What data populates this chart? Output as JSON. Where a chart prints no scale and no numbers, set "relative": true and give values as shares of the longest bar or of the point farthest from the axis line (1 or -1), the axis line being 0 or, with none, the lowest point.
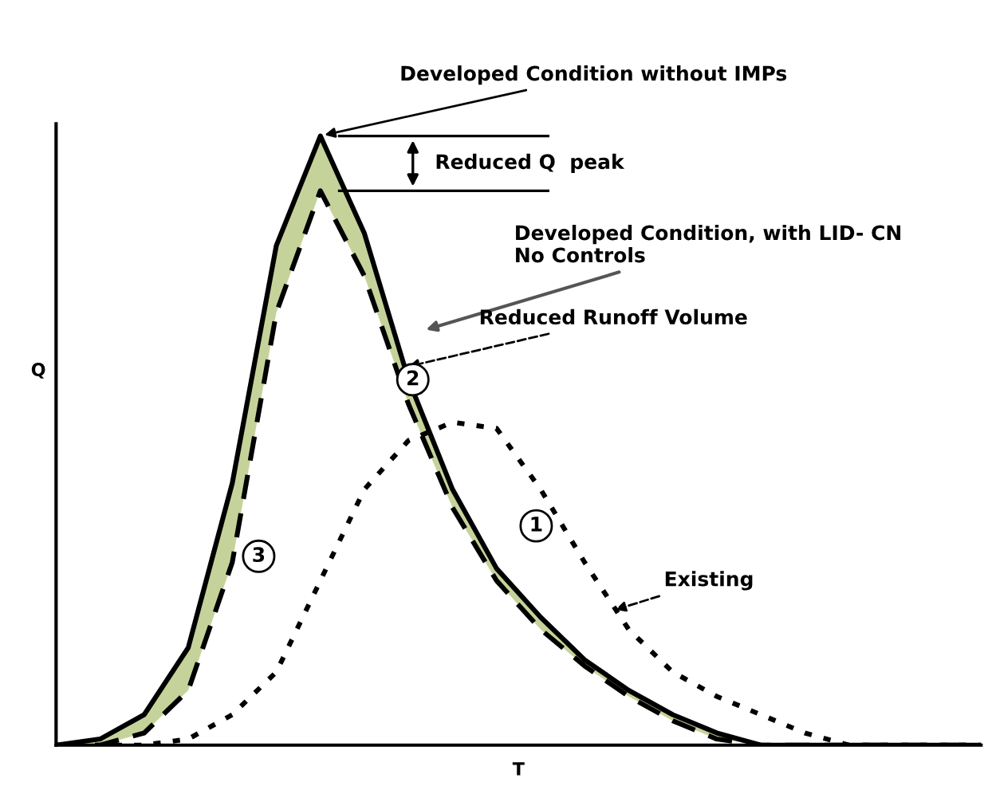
{
  "chart_data": {
    "type": "line",
    "relative": true,
    "xlabel": "T",
    "ylabel": "Q",
    "legend": false,
    "marker": "none",
    "categories": [
      null,
      null,
      null,
      null,
      null,
      null,
      null,
      null,
      null,
      null,
      null,
      null,
      null,
      null,
      null,
      null,
      null,
      null,
      null,
      null,
      null,
      null
    ],
    "series": [
      {
        "color": "#000000",
        "line_style": "solid",
        "values": [
          0,
          0.01,
          0.05,
          0.16,
          0.43,
          0.82,
          1.0,
          0.84,
          0.6,
          0.42,
          0.29,
          0.21,
          0.14,
          0.09,
          0.05,
          0.02,
          0,
          0,
          0,
          0,
          0,
          0
        ],
        "lower": [
          0,
          0,
          0.02,
          0.09,
          0.3,
          0.71,
          0.91,
          0.77,
          0.56,
          0.39,
          0.27,
          0.19,
          0.13,
          0.08,
          0.04,
          0.01,
          0,
          0,
          0,
          0,
          0,
          0
        ],
        "upper": [
          0,
          0.01,
          0.05,
          0.16,
          0.43,
          0.82,
          1.0,
          0.84,
          0.6,
          0.42,
          0.29,
          0.21,
          0.14,
          0.09,
          0.05,
          0.02,
          0,
          0,
          0,
          0,
          0,
          0
        ]
      },
      {
        "color": "#000000",
        "line_style": "dashed",
        "values": [
          0,
          0,
          0.02,
          0.09,
          0.3,
          0.71,
          0.91,
          0.77,
          0.56,
          0.39,
          0.27,
          0.19,
          0.13,
          0.08,
          0.04,
          0.01,
          0,
          0,
          0,
          0,
          0,
          0
        ]
      },
      {
        "color": "#000000",
        "line_style": "dotted",
        "values": [
          0,
          0,
          0,
          0.01,
          0.05,
          0.12,
          0.27,
          0.42,
          0.5,
          0.53,
          0.52,
          0.42,
          0.3,
          0.19,
          0.12,
          0.08,
          0.05,
          0.02,
          0,
          0,
          0,
          0
        ]
      }
    ],
    "ref_lines": [
      {
        "axis": "y",
        "value": 1.0,
        "label": null
      },
      {
        "axis": "y",
        "value": 0.91,
        "label": null
      }
    ],
    "annotations": [
      "Developed Condition without IMPs",
      "Reduced Q  peak",
      "Developed Condition, with LID- CN\nNo Controls",
      "Reduced Runoff Volume",
      "Existing",
      "1",
      "2",
      "3"
    ]
  }
}
